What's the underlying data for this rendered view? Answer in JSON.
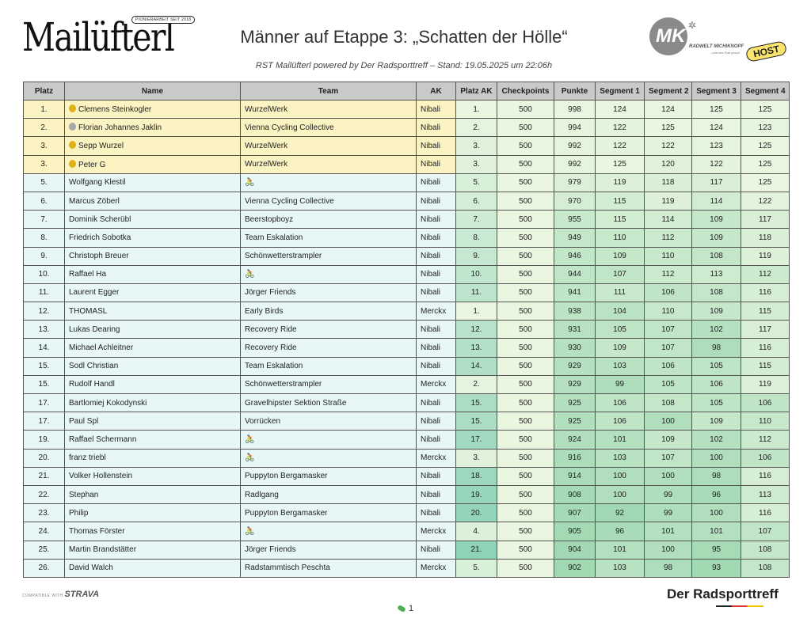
{
  "header": {
    "logo_text": "Mailüfterl",
    "logo_tag": "PIONIERARBEIT SEIT 2018",
    "title": "Männer auf Etappe 3: „Schatten der Hölle“",
    "subtitle": "RST Mailüfterl powered by Der Radsporttreff – Stand: 19.05.2025 um 22:06h",
    "right_logo": {
      "mark": "MK",
      "name": "RADWELT MICHIKNOPF",
      "tagline": "...und das Rad passt!",
      "badge": "HOST"
    }
  },
  "columns": [
    "Platz",
    "Name",
    "Team",
    "AK",
    "Platz AK",
    "Checkpoints",
    "Punkte",
    "Segment 1",
    "Segment 2",
    "Segment 3",
    "Segment 4"
  ],
  "colors": {
    "header_bg": "#c9c9c9",
    "podium_row": "#fbf3c2",
    "other_row": "#e7f7f7",
    "gold": "#e0b21a",
    "silver": "#a8a8a8"
  },
  "rows": [
    {
      "platz": "1.",
      "name": "Clemens Steinkogler",
      "medal": "gold",
      "team": "WurzelWerk",
      "team_icon": "",
      "ak": "Nibali",
      "platz_ak": "1.",
      "checkpoints": "500",
      "punkte": "998",
      "s1": "124",
      "s2": "124",
      "s3": "125",
      "s4": "125"
    },
    {
      "platz": "2.",
      "name": "Florian Johannes Jaklin",
      "medal": "silver",
      "team": "Vienna Cycling Collective",
      "team_icon": "",
      "ak": "Nibali",
      "platz_ak": "2.",
      "checkpoints": "500",
      "punkte": "994",
      "s1": "122",
      "s2": "125",
      "s3": "124",
      "s4": "123"
    },
    {
      "platz": "3.",
      "name": "Sepp Wurzel",
      "medal": "gold",
      "team": "WurzelWerk",
      "team_icon": "",
      "ak": "Nibali",
      "platz_ak": "3.",
      "checkpoints": "500",
      "punkte": "992",
      "s1": "122",
      "s2": "122",
      "s3": "123",
      "s4": "125"
    },
    {
      "platz": "3.",
      "name": "Peter G",
      "medal": "gold",
      "team": "WurzelWerk",
      "team_icon": "",
      "ak": "Nibali",
      "platz_ak": "3.",
      "checkpoints": "500",
      "punkte": "992",
      "s1": "125",
      "s2": "120",
      "s3": "122",
      "s4": "125"
    },
    {
      "platz": "5.",
      "name": "Wolfgang Klestil",
      "medal": "",
      "team": "",
      "team_icon": "bike-icon",
      "ak": "Nibali",
      "platz_ak": "5.",
      "checkpoints": "500",
      "punkte": "979",
      "s1": "119",
      "s2": "118",
      "s3": "117",
      "s4": "125"
    },
    {
      "platz": "6.",
      "name": "Marcus Zöberl",
      "medal": "",
      "team": "Vienna Cycling Collective",
      "team_icon": "",
      "ak": "Nibali",
      "platz_ak": "6.",
      "checkpoints": "500",
      "punkte": "970",
      "s1": "115",
      "s2": "119",
      "s3": "114",
      "s4": "122"
    },
    {
      "platz": "7.",
      "name": "Dominik Scherübl",
      "medal": "",
      "team": "Beerstopboyz",
      "team_icon": "",
      "ak": "Nibali",
      "platz_ak": "7.",
      "checkpoints": "500",
      "punkte": "955",
      "s1": "115",
      "s2": "114",
      "s3": "109",
      "s4": "117"
    },
    {
      "platz": "8.",
      "name": "Friedrich Sobotka",
      "medal": "",
      "team": "Team Eskalation",
      "team_icon": "",
      "ak": "Nibali",
      "platz_ak": "8.",
      "checkpoints": "500",
      "punkte": "949",
      "s1": "110",
      "s2": "112",
      "s3": "109",
      "s4": "118"
    },
    {
      "platz": "9.",
      "name": "Christoph Breuer",
      "medal": "",
      "team": "Schönwetterstrampler",
      "team_icon": "",
      "ak": "Nibali",
      "platz_ak": "9.",
      "checkpoints": "500",
      "punkte": "946",
      "s1": "109",
      "s2": "110",
      "s3": "108",
      "s4": "119"
    },
    {
      "platz": "10.",
      "name": "Raffael Ha",
      "medal": "",
      "team": "",
      "team_icon": "bike-icon",
      "ak": "Nibali",
      "platz_ak": "10.",
      "checkpoints": "500",
      "punkte": "944",
      "s1": "107",
      "s2": "112",
      "s3": "113",
      "s4": "112"
    },
    {
      "platz": "11.",
      "name": "Laurent Egger",
      "medal": "",
      "team": "Jörger Friends",
      "team_icon": "",
      "ak": "Nibali",
      "platz_ak": "11.",
      "checkpoints": "500",
      "punkte": "941",
      "s1": "111",
      "s2": "106",
      "s3": "108",
      "s4": "116"
    },
    {
      "platz": "12.",
      "name": "THOMASL",
      "medal": "",
      "team": "Early Birds",
      "team_icon": "",
      "ak": "Merckx",
      "platz_ak": "1.",
      "checkpoints": "500",
      "punkte": "938",
      "s1": "104",
      "s2": "110",
      "s3": "109",
      "s4": "115"
    },
    {
      "platz": "13.",
      "name": "Lukas Dearing",
      "medal": "",
      "team": "Recovery Ride",
      "team_icon": "",
      "ak": "Nibali",
      "platz_ak": "12.",
      "checkpoints": "500",
      "punkte": "931",
      "s1": "105",
      "s2": "107",
      "s3": "102",
      "s4": "117"
    },
    {
      "platz": "14.",
      "name": "Michael Achleitner",
      "medal": "",
      "team": "Recovery Ride",
      "team_icon": "",
      "ak": "Nibali",
      "platz_ak": "13.",
      "checkpoints": "500",
      "punkte": "930",
      "s1": "109",
      "s2": "107",
      "s3": "98",
      "s4": "116"
    },
    {
      "platz": "15.",
      "name": "Sodl Christian",
      "medal": "",
      "team": "Team Eskalation",
      "team_icon": "",
      "ak": "Nibali",
      "platz_ak": "14.",
      "checkpoints": "500",
      "punkte": "929",
      "s1": "103",
      "s2": "106",
      "s3": "105",
      "s4": "115"
    },
    {
      "platz": "15.",
      "name": "Rudolf Handl",
      "medal": "",
      "team": "Schönwetterstrampler",
      "team_icon": "",
      "ak": "Merckx",
      "platz_ak": "2.",
      "checkpoints": "500",
      "punkte": "929",
      "s1": "99",
      "s2": "105",
      "s3": "106",
      "s4": "119"
    },
    {
      "platz": "17.",
      "name": "Bartlomiej Kokodynski",
      "medal": "",
      "team": "Gravelhipster Sektion Straße",
      "team_icon": "",
      "ak": "Nibali",
      "platz_ak": "15.",
      "checkpoints": "500",
      "punkte": "925",
      "s1": "106",
      "s2": "108",
      "s3": "105",
      "s4": "106"
    },
    {
      "platz": "17.",
      "name": "Paul Spl",
      "medal": "",
      "team": "Vorrücken",
      "team_icon": "",
      "ak": "Nibali",
      "platz_ak": "15.",
      "checkpoints": "500",
      "punkte": "925",
      "s1": "106",
      "s2": "100",
      "s3": "109",
      "s4": "110"
    },
    {
      "platz": "19.",
      "name": "Raffael Schermann",
      "medal": "",
      "team": "",
      "team_icon": "bike-icon",
      "ak": "Nibali",
      "platz_ak": "17.",
      "checkpoints": "500",
      "punkte": "924",
      "s1": "101",
      "s2": "109",
      "s3": "102",
      "s4": "112"
    },
    {
      "platz": "20.",
      "name": "franz triebl",
      "medal": "",
      "team": "",
      "team_icon": "bike-icon",
      "ak": "Merckx",
      "platz_ak": "3.",
      "checkpoints": "500",
      "punkte": "916",
      "s1": "103",
      "s2": "107",
      "s3": "100",
      "s4": "106"
    },
    {
      "platz": "21.",
      "name": "Volker Hollenstein",
      "medal": "",
      "team": "Puppyton Bergamasker",
      "team_icon": "",
      "ak": "Nibali",
      "platz_ak": "18.",
      "checkpoints": "500",
      "punkte": "914",
      "s1": "100",
      "s2": "100",
      "s3": "98",
      "s4": "116"
    },
    {
      "platz": "22.",
      "name": "Stephan",
      "medal": "",
      "team": "Radlgang",
      "team_icon": "",
      "ak": "Nibali",
      "platz_ak": "19.",
      "checkpoints": "500",
      "punkte": "908",
      "s1": "100",
      "s2": "99",
      "s3": "96",
      "s4": "113"
    },
    {
      "platz": "23.",
      "name": "Philip",
      "medal": "",
      "team": "Puppyton Bergamasker",
      "team_icon": "",
      "ak": "Nibali",
      "platz_ak": "20.",
      "checkpoints": "500",
      "punkte": "907",
      "s1": "92",
      "s2": "99",
      "s3": "100",
      "s4": "116"
    },
    {
      "platz": "24.",
      "name": "Thomas Förster",
      "medal": "",
      "team": "",
      "team_icon": "bike-icon",
      "ak": "Merckx",
      "platz_ak": "4.",
      "checkpoints": "500",
      "punkte": "905",
      "s1": "96",
      "s2": "101",
      "s3": "101",
      "s4": "107"
    },
    {
      "platz": "25.",
      "name": "Martin Brandstätter",
      "medal": "",
      "team": "Jörger Friends",
      "team_icon": "",
      "ak": "Nibali",
      "platz_ak": "21.",
      "checkpoints": "500",
      "punkte": "904",
      "s1": "101",
      "s2": "100",
      "s3": "95",
      "s4": "108"
    },
    {
      "platz": "26.",
      "name": "David Walch",
      "medal": "",
      "team": "Radstammtisch Peschta",
      "team_icon": "",
      "ak": "Merckx",
      "platz_ak": "5.",
      "checkpoints": "500",
      "punkte": "902",
      "s1": "103",
      "s2": "98",
      "s3": "93",
      "s4": "108"
    }
  ],
  "footer": {
    "compatible_label": "COMPATIBLE WITH",
    "strava": "STRAVA",
    "brand": "Der Radsporttreff",
    "page": "1"
  }
}
